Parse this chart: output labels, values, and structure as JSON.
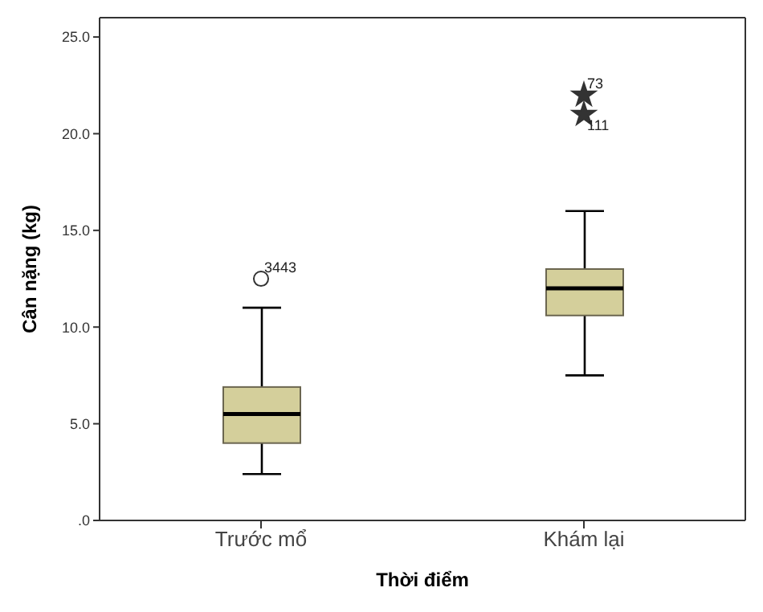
{
  "chart_data": {
    "type": "box",
    "xlabel": "Thời điểm",
    "ylabel": "Cân nặng (kg)",
    "categories": [
      "Trước mổ",
      "Khám lại"
    ],
    "ylim": [
      0,
      26
    ],
    "yticks": [
      {
        "value": 0,
        "label": ".0"
      },
      {
        "value": 5,
        "label": "5.0"
      },
      {
        "value": 10,
        "label": "10.0"
      },
      {
        "value": 15,
        "label": "15.0"
      },
      {
        "value": 20,
        "label": "20.0"
      },
      {
        "value": 25,
        "label": "25.0"
      }
    ],
    "grid": false,
    "legend": false,
    "series": [
      {
        "type": "box",
        "color": "#d4cf9b",
        "boxes": [
          {
            "low": 2.4,
            "q1": 4.0,
            "median": 5.5,
            "q3": 6.9,
            "high": 11.0
          },
          {
            "low": 7.5,
            "q1": 10.6,
            "median": 12.0,
            "q3": 13.0,
            "high": 16.0
          }
        ]
      },
      {
        "type": "scatter",
        "color": "#333333",
        "marker": "circle",
        "x": [
          "Trước mổ"
        ],
        "values": [
          12.5
        ]
      },
      {
        "type": "scatter",
        "color": "#333333",
        "marker": "star",
        "x": [
          "Khám lại",
          "Khám lại"
        ],
        "values": [
          22.0,
          21.0
        ]
      }
    ],
    "annotations": [
      {
        "text": "3443",
        "x": "Trước mổ",
        "y": 12.5
      },
      {
        "text": "73",
        "x": "Khám lại",
        "y": 22.0
      },
      {
        "text": "111",
        "x": "Khám lại",
        "y": 21.0
      }
    ]
  }
}
